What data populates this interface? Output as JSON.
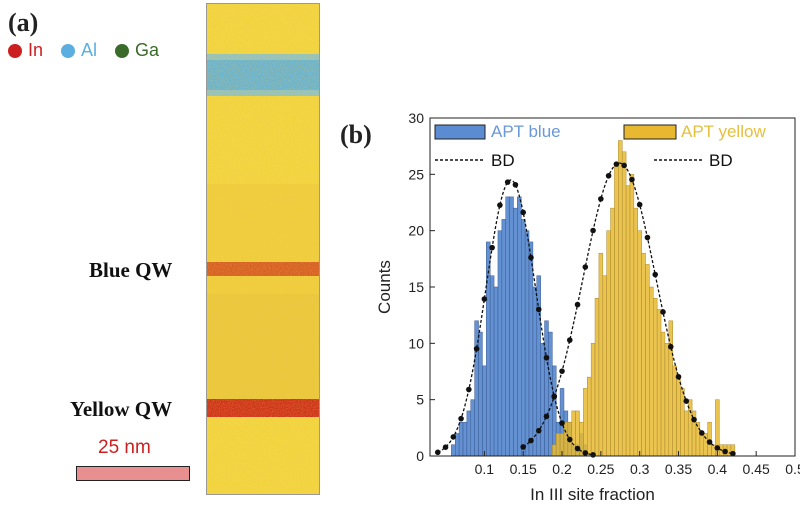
{
  "panel_a": {
    "label": "(a)",
    "elements": [
      {
        "name": "In",
        "color": "#cc1f1f"
      },
      {
        "name": "Al",
        "color": "#5aaee0"
      },
      {
        "name": "Ga",
        "color": "#3a6b2a"
      }
    ],
    "blue_qw_label": "Blue QW",
    "yellow_qw_label": "Yellow QW",
    "scale_bar_text": "25 nm",
    "colors": {
      "background_yellow": "#f2d33a",
      "al_layer": "#6cb6d8",
      "in_layer": "#c8321c"
    }
  },
  "panel_b": {
    "label": "(b)"
  },
  "chart_data": {
    "type": "bar",
    "xlabel": "In III site fraction",
    "ylabel": "Counts",
    "xlim": [
      0.03,
      0.5
    ],
    "ylim": [
      0,
      30
    ],
    "xticks": [
      "0.1",
      "0.15",
      "0.2",
      "0.25",
      "0.3",
      "0.35",
      "0.4",
      "0.45",
      "0.5"
    ],
    "yticks": [
      "0",
      "5",
      "10",
      "15",
      "20",
      "25",
      "30"
    ],
    "legend_position": "top",
    "series": [
      {
        "name": "APT blue",
        "color": "#5b8bd0",
        "bin_width": 0.005,
        "x": [
          0.055,
          0.06,
          0.065,
          0.07,
          0.075,
          0.08,
          0.085,
          0.09,
          0.095,
          0.1,
          0.105,
          0.11,
          0.115,
          0.12,
          0.125,
          0.13,
          0.135,
          0.14,
          0.145,
          0.15,
          0.155,
          0.16,
          0.165,
          0.17,
          0.175,
          0.18,
          0.185,
          0.19,
          0.195,
          0.2,
          0.205,
          0.21,
          0.215,
          0.22,
          0.225,
          0.23
        ],
        "values": [
          0,
          1,
          2,
          3,
          3,
          4,
          5,
          12,
          11,
          8,
          19,
          16,
          15,
          20,
          21,
          23,
          23,
          22,
          23,
          21,
          20,
          19,
          15,
          16,
          10,
          12,
          11,
          8,
          3,
          6,
          4,
          3,
          1,
          1,
          2,
          1
        ]
      },
      {
        "name": "APT yellow",
        "color": "#e8b830",
        "bin_width": 0.005,
        "x": [
          0.19,
          0.195,
          0.2,
          0.205,
          0.21,
          0.215,
          0.22,
          0.225,
          0.23,
          0.235,
          0.24,
          0.245,
          0.25,
          0.255,
          0.26,
          0.265,
          0.27,
          0.275,
          0.28,
          0.285,
          0.29,
          0.295,
          0.3,
          0.305,
          0.31,
          0.315,
          0.32,
          0.325,
          0.33,
          0.335,
          0.34,
          0.345,
          0.35,
          0.355,
          0.36,
          0.365,
          0.37,
          0.375,
          0.38,
          0.385,
          0.39,
          0.395,
          0.4,
          0.405,
          0.41,
          0.415,
          0.42
        ],
        "values": [
          1,
          2,
          2,
          3,
          3,
          4,
          4,
          3,
          6,
          7,
          10,
          14,
          18,
          16,
          20,
          22,
          26,
          28,
          27,
          24,
          25,
          22,
          20,
          18,
          17,
          15,
          14,
          13,
          11,
          10,
          12,
          8,
          7,
          6,
          4,
          5,
          4,
          3,
          2,
          2,
          3,
          1,
          5,
          1,
          1,
          1,
          1
        ]
      },
      {
        "name": "BD",
        "color": "#111111",
        "style": "dashed-with-dots",
        "mean": 0.134,
        "sd": 0.032,
        "peak": 24.5,
        "x_start": 0.04,
        "x_end": 0.24
      },
      {
        "name": "BD",
        "color": "#111111",
        "style": "dashed-with-dots",
        "mean": 0.274,
        "sd": 0.047,
        "peak": 26.0,
        "x_start": 0.15,
        "x_end": 0.42
      }
    ],
    "legend": [
      {
        "label": "APT blue",
        "color": "#5b8bd0",
        "text_color": "#6a98d8"
      },
      {
        "label": "APT yellow",
        "color": "#e8b830",
        "text_color": "#e5c040"
      },
      {
        "label": "BD",
        "color": "#111111"
      },
      {
        "label": "BD",
        "color": "#111111"
      }
    ]
  }
}
